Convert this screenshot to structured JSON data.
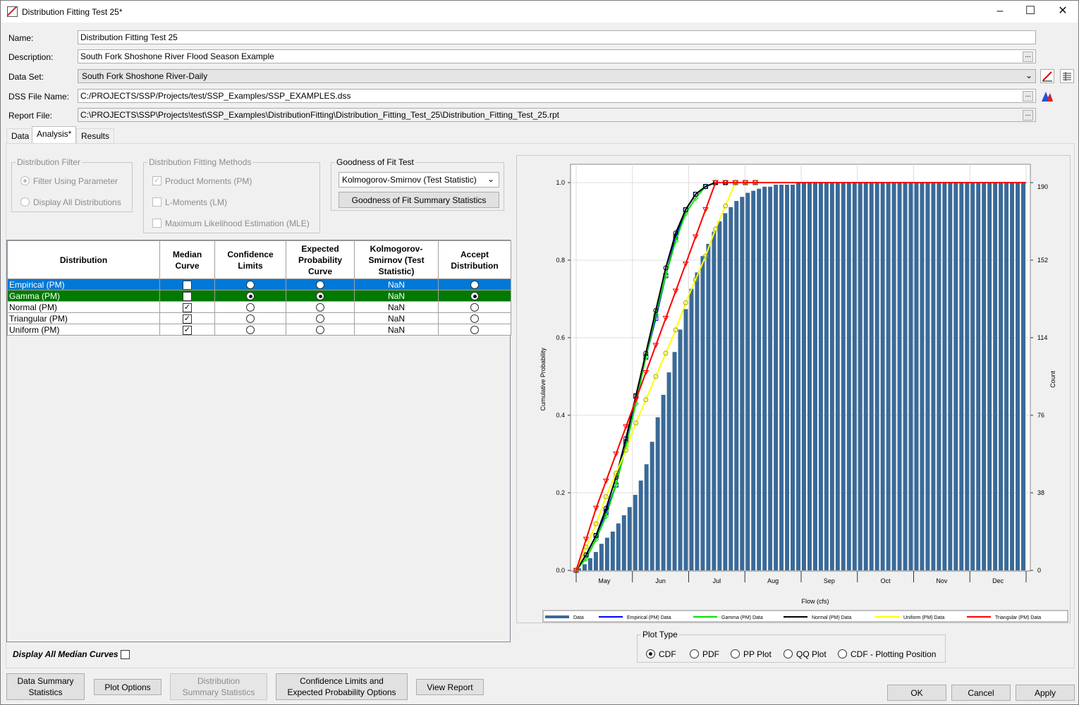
{
  "window": {
    "title": "Distribution Fitting Test 25*"
  },
  "fields": {
    "name_label": "Name:",
    "name_value": "Distribution Fitting Test 25",
    "description_label": "Description:",
    "description_value": "South Fork Shoshone River Flood Season Example",
    "dataset_label": "Data Set:",
    "dataset_value": "South Fork Shoshone River-Daily",
    "dss_label": "DSS File Name:",
    "dss_value": "C:/PROJECTS/SSP/Projects/test/SSP_Examples/SSP_EXAMPLES.dss",
    "report_label": "Report File:",
    "report_value": "C:\\PROJECTS\\SSP\\Projects\\test\\SSP_Examples\\DistributionFitting\\Distribution_Fitting_Test_25\\Distribution_Fitting_Test_25.rpt",
    "ellipsis": "..."
  },
  "tabs": [
    {
      "label": "Data"
    },
    {
      "label": "Analysis*"
    },
    {
      "label": "Results"
    }
  ],
  "filter": {
    "title": "Distribution Filter",
    "options": [
      {
        "label": "Filter Using Parameter",
        "selected": true
      },
      {
        "label": "Display All Distributions",
        "selected": false
      }
    ]
  },
  "methods": {
    "title": "Distribution Fitting Methods",
    "options": [
      {
        "label": "Product Moments (PM)",
        "checked": true
      },
      {
        "label": "L-Moments (LM)",
        "checked": false
      },
      {
        "label": "Maximum Likelihood Estimation (MLE)",
        "checked": false
      }
    ]
  },
  "gof": {
    "title": "Goodness of Fit Test",
    "selected": "Kolmogorov-Smirnov (Test Statistic)",
    "summary_button": "Goodness of Fit Summary Statistics"
  },
  "table": {
    "headers": [
      "Distribution",
      "Median Curve",
      "Confidence Limits",
      "Expected Probability Curve",
      "Kolmogorov-Smirnov (Test Statistic)",
      "Accept Distribution"
    ],
    "rows": [
      {
        "name": "Empirical (PM)",
        "median": true,
        "confidence": false,
        "expected": false,
        "ks": "NaN",
        "accept": false
      },
      {
        "name": "Gamma (PM)",
        "median": true,
        "confidence": true,
        "expected": true,
        "ks": "NaN",
        "accept": true
      },
      {
        "name": "Normal (PM)",
        "median": true,
        "confidence": false,
        "expected": false,
        "ks": "NaN",
        "accept": false
      },
      {
        "name": "Triangular (PM)",
        "median": true,
        "confidence": false,
        "expected": false,
        "ks": "NaN",
        "accept": false
      },
      {
        "name": "Uniform (PM)",
        "median": true,
        "confidence": false,
        "expected": false,
        "ks": "NaN",
        "accept": false
      }
    ]
  },
  "display_all_median": {
    "label": "Display All Median Curves",
    "checked": false
  },
  "plot_type": {
    "title": "Plot Type",
    "options": [
      {
        "label": "CDF",
        "selected": true
      },
      {
        "label": "PDF",
        "selected": false
      },
      {
        "label": "PP Plot",
        "selected": false
      },
      {
        "label": "QQ Plot",
        "selected": false
      },
      {
        "label": "CDF - Plotting Position",
        "selected": false
      }
    ]
  },
  "buttons": {
    "data_summary_1": "Data Summary",
    "data_summary_2": "Statistics",
    "plot_options": "Plot Options",
    "dist_summary_1": "Distribution",
    "dist_summary_2": "Summary Statistics",
    "conf_1": "Confidence Limits and",
    "conf_2": "Expected Probability Options",
    "view_report": "View Report",
    "ok": "OK",
    "cancel": "Cancel",
    "apply": "Apply"
  },
  "colors": {
    "bars": "#3a6a98",
    "empirical": "#0000ff",
    "gamma": "#00e000",
    "normal": "#000000",
    "uniform": "#ffff00",
    "triangular": "#ff0000",
    "selected_row_1": "#0078d7",
    "selected_row_2": "#007a00"
  },
  "chart_data": {
    "type": "line",
    "xlabel": "Flow (cfs)",
    "ylabel": "Cumulative Probability",
    "y2label": "Count",
    "x_ticks": [
      "May",
      "Jun",
      "Jul",
      "Aug",
      "Sep",
      "Oct",
      "Nov",
      "Dec"
    ],
    "y_ticks": [
      "0.0",
      "0.2",
      "0.4",
      "0.6",
      "0.8",
      "1.0"
    ],
    "y2_ticks": [
      "0",
      "38",
      "76",
      "114",
      "152",
      "190"
    ],
    "ylim": [
      0,
      1
    ],
    "y2lim": [
      0,
      190
    ],
    "legend": [
      "Data",
      "Empirical (PM) Data",
      "Gamma (PM) Data",
      "Normal (PM) Data",
      "Uniform (PM) Data",
      "Triangular (PM) Data"
    ],
    "legend_position": "bottom",
    "bar_counts": [
      1,
      3,
      6,
      9,
      13,
      16,
      19,
      23,
      27,
      31,
      37,
      44,
      52,
      63,
      75,
      86,
      97,
      107,
      118,
      128,
      138,
      146,
      154,
      160,
      166,
      171,
      175,
      178,
      181,
      183,
      185,
      186,
      187,
      188,
      188,
      189,
      189,
      189,
      189,
      190,
      190,
      190,
      190,
      190,
      190,
      190,
      190,
      190,
      190,
      190,
      190,
      190,
      190,
      190,
      190,
      190,
      190,
      190,
      190,
      190,
      190,
      190,
      190,
      190,
      190,
      190,
      190,
      190,
      190,
      190,
      190,
      190,
      190,
      190,
      190,
      190,
      190,
      190,
      190,
      190
    ],
    "series": [
      {
        "name": "Empirical (PM) Data",
        "values": [
          0,
          0.04,
          0.09,
          0.15,
          0.22,
          0.33,
          0.45,
          0.55,
          0.65,
          0.76,
          0.86,
          0.93,
          0.97,
          0.99,
          1.0,
          1.0,
          1.0,
          1.0,
          1.0
        ]
      },
      {
        "name": "Gamma (PM) Data",
        "values": [
          0,
          0.03,
          0.08,
          0.14,
          0.22,
          0.32,
          0.43,
          0.55,
          0.66,
          0.76,
          0.85,
          0.92,
          0.96,
          0.99,
          1.0,
          1.0,
          1.0,
          1.0,
          1.0
        ]
      },
      {
        "name": "Normal (PM) Data",
        "values": [
          0,
          0.04,
          0.09,
          0.16,
          0.24,
          0.34,
          0.45,
          0.56,
          0.67,
          0.78,
          0.87,
          0.93,
          0.97,
          0.99,
          1.0,
          1.0,
          1.0,
          1.0,
          1.0
        ]
      },
      {
        "name": "Uniform (PM) Data",
        "values": [
          0,
          0.06,
          0.12,
          0.19,
          0.25,
          0.31,
          0.38,
          0.44,
          0.5,
          0.56,
          0.62,
          0.69,
          0.75,
          0.81,
          0.88,
          0.94,
          1.0,
          1.0,
          1.0
        ]
      },
      {
        "name": "Triangular (PM) Data",
        "values": [
          0,
          0.08,
          0.16,
          0.23,
          0.3,
          0.37,
          0.44,
          0.51,
          0.58,
          0.65,
          0.72,
          0.79,
          0.86,
          0.93,
          1.0,
          1.0,
          1.0,
          1.0,
          1.0
        ]
      }
    ]
  }
}
